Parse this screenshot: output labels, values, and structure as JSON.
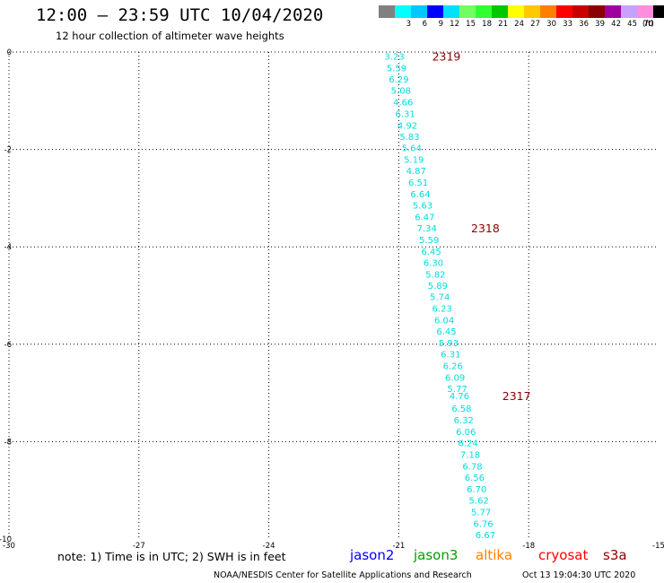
{
  "header": {
    "title": "12:00 – 23:59 UTC 10/04/2020",
    "subtitle": "12 hour collection of altimeter wave heights"
  },
  "color_scale": {
    "unit": "(ft)",
    "items": [
      {
        "label": "",
        "color": "#808080"
      },
      {
        "label": "3",
        "color": "#00ffff"
      },
      {
        "label": "6",
        "color": "#00c8ff"
      },
      {
        "label": "9",
        "color": "#0000ff"
      },
      {
        "label": "12",
        "color": "#00e0ff"
      },
      {
        "label": "15",
        "color": "#70ff60"
      },
      {
        "label": "18",
        "color": "#30ff30"
      },
      {
        "label": "21",
        "color": "#00c800"
      },
      {
        "label": "24",
        "color": "#ffff00"
      },
      {
        "label": "27",
        "color": "#ffc800"
      },
      {
        "label": "30",
        "color": "#ff8000"
      },
      {
        "label": "33",
        "color": "#ff0000"
      },
      {
        "label": "36",
        "color": "#c80000"
      },
      {
        "label": "39",
        "color": "#8b0000"
      },
      {
        "label": "42",
        "color": "#a000a0"
      },
      {
        "label": "45",
        "color": "#c8a0ff"
      },
      {
        "label": "70",
        "color": "#ff8cdc"
      },
      {
        "label": "",
        "color": "#000000"
      }
    ]
  },
  "footer": {
    "note": "note: 1) Time is in UTC; 2) SWH is in feet",
    "satellites": [
      {
        "name": "jason2",
        "color": "#0000ff"
      },
      {
        "name": "jason3",
        "color": "#00a000"
      },
      {
        "name": "altika",
        "color": "#ff8000"
      },
      {
        "name": "cryosat",
        "color": "#ff0000"
      },
      {
        "name": "s3a",
        "color": "#8b0000"
      }
    ],
    "credit": "NOAA/NESDIS Center for Satellite Applications and Research",
    "timestamp": "Oct 13 19:04:30 UTC 2020"
  },
  "chart_data": {
    "type": "scatter",
    "title": "",
    "xlabel": "",
    "ylabel": "",
    "xlim": [
      -30,
      -15
    ],
    "ylim": [
      -10,
      0
    ],
    "x_ticks": [
      "-30",
      "-27",
      "-24",
      "-21",
      "-18",
      "-15"
    ],
    "y_ticks": [
      "0",
      "-2",
      "-4",
      "-6",
      "-8",
      "-10"
    ],
    "grid": true,
    "point_color": "#00dddd",
    "time_label_color": "#8b0000",
    "points": [
      {
        "lon": -21.1,
        "lat": -0.08,
        "swh": "3.23"
      },
      {
        "lon": -21.05,
        "lat": -0.32,
        "swh": "5.59"
      },
      {
        "lon": -21.0,
        "lat": -0.55,
        "swh": "6.29"
      },
      {
        "lon": -20.95,
        "lat": -0.78,
        "swh": "5.08"
      },
      {
        "lon": -20.9,
        "lat": -1.02,
        "swh": "4.66"
      },
      {
        "lon": -20.85,
        "lat": -1.26,
        "swh": "6.31"
      },
      {
        "lon": -20.8,
        "lat": -1.5,
        "swh": "4.92"
      },
      {
        "lon": -20.75,
        "lat": -1.73,
        "swh": "5.83"
      },
      {
        "lon": -20.7,
        "lat": -1.96,
        "swh": "5.64"
      },
      {
        "lon": -20.65,
        "lat": -2.2,
        "swh": "5.19"
      },
      {
        "lon": -20.6,
        "lat": -2.43,
        "swh": "4.87"
      },
      {
        "lon": -20.55,
        "lat": -2.67,
        "swh": "6.51"
      },
      {
        "lon": -20.5,
        "lat": -2.91,
        "swh": "6.64"
      },
      {
        "lon": -20.45,
        "lat": -3.14,
        "swh": "5.63"
      },
      {
        "lon": -20.4,
        "lat": -3.38,
        "swh": "6.47"
      },
      {
        "lon": -20.35,
        "lat": -3.61,
        "swh": "7.34"
      },
      {
        "lon": -20.3,
        "lat": -3.85,
        "swh": "5.59"
      },
      {
        "lon": -20.25,
        "lat": -4.09,
        "swh": "6.45"
      },
      {
        "lon": -20.2,
        "lat": -4.32,
        "swh": "6.30"
      },
      {
        "lon": -20.15,
        "lat": -4.56,
        "swh": "5.82"
      },
      {
        "lon": -20.1,
        "lat": -4.79,
        "swh": "5.89"
      },
      {
        "lon": -20.05,
        "lat": -5.02,
        "swh": "5.74"
      },
      {
        "lon": -20.0,
        "lat": -5.26,
        "swh": "6.23"
      },
      {
        "lon": -19.95,
        "lat": -5.5,
        "swh": "6.04"
      },
      {
        "lon": -19.9,
        "lat": -5.73,
        "swh": "6.45"
      },
      {
        "lon": -19.85,
        "lat": -5.97,
        "swh": "5.93"
      },
      {
        "lon": -19.8,
        "lat": -6.2,
        "swh": "6.31"
      },
      {
        "lon": -19.75,
        "lat": -6.44,
        "swh": "6.26"
      },
      {
        "lon": -19.7,
        "lat": -6.68,
        "swh": "6.09"
      },
      {
        "lon": -19.65,
        "lat": -6.91,
        "swh": "5.77"
      },
      {
        "lon": -19.6,
        "lat": -7.05,
        "swh": "4.76"
      },
      {
        "lon": -19.55,
        "lat": -7.31,
        "swh": "6.58"
      },
      {
        "lon": -19.5,
        "lat": -7.55,
        "swh": "6.32"
      },
      {
        "lon": -19.45,
        "lat": -7.79,
        "swh": "6.06"
      },
      {
        "lon": -19.4,
        "lat": -8.02,
        "swh": "6.24"
      },
      {
        "lon": -19.35,
        "lat": -8.26,
        "swh": "7.18"
      },
      {
        "lon": -19.3,
        "lat": -8.5,
        "swh": "6.78"
      },
      {
        "lon": -19.25,
        "lat": -8.73,
        "swh": "6.56"
      },
      {
        "lon": -19.2,
        "lat": -8.97,
        "swh": "6.70"
      },
      {
        "lon": -19.15,
        "lat": -9.2,
        "swh": "5.62"
      },
      {
        "lon": -19.1,
        "lat": -9.44,
        "swh": "5.77"
      },
      {
        "lon": -19.05,
        "lat": -9.68,
        "swh": "6.76"
      },
      {
        "lon": -19.0,
        "lat": -9.91,
        "swh": "6.67"
      }
    ],
    "time_labels": [
      {
        "lon": -19.9,
        "lat": -0.08,
        "text": "2319"
      },
      {
        "lon": -19.0,
        "lat": -3.61,
        "text": "2318"
      },
      {
        "lon": -18.28,
        "lat": -7.05,
        "text": "2317"
      }
    ]
  }
}
